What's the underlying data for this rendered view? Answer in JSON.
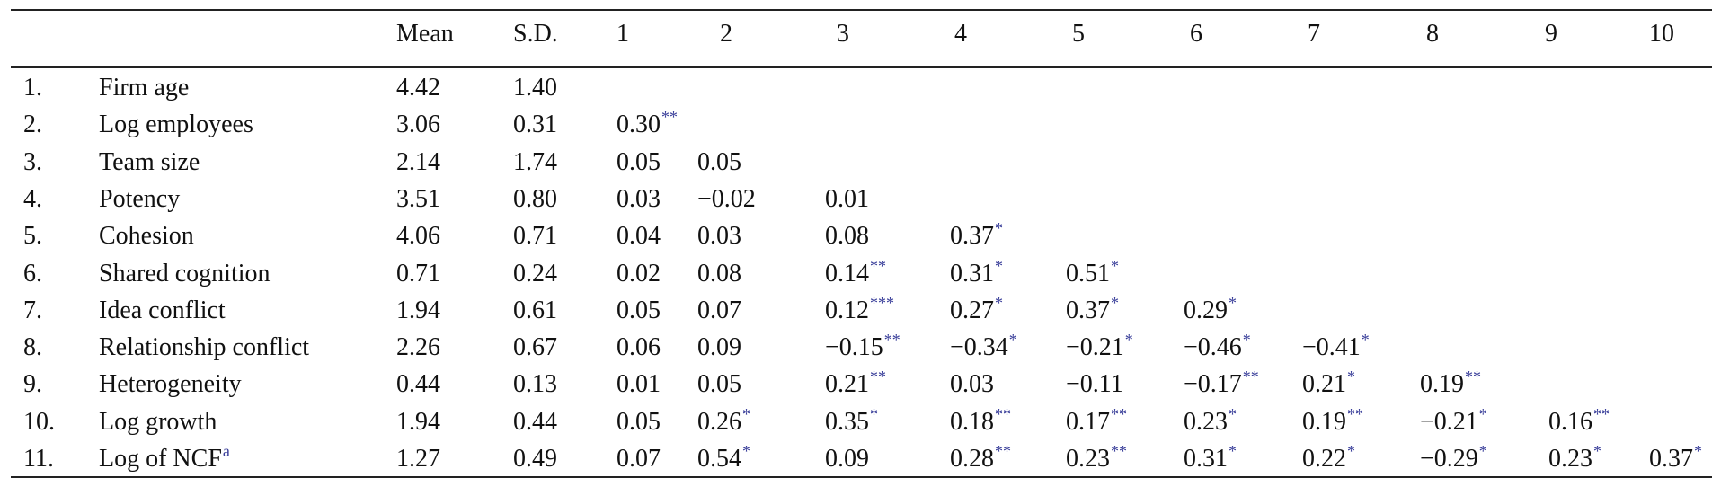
{
  "header": {
    "mean": "Mean",
    "sd": "S.D.",
    "cols": [
      "1",
      "2",
      "3",
      "4",
      "5",
      "6",
      "7",
      "8",
      "9",
      "10"
    ]
  },
  "rows": [
    {
      "num": "1.",
      "name": "Firm age",
      "mean": "4.42",
      "sd": "1.40",
      "cells": []
    },
    {
      "num": "2.",
      "name": "Log employees",
      "mean": "3.06",
      "sd": "0.31",
      "cells": [
        [
          "0.30",
          "**"
        ]
      ]
    },
    {
      "num": "3.",
      "name": "Team size",
      "mean": "2.14",
      "sd": "1.74",
      "cells": [
        [
          "0.05",
          ""
        ],
        [
          "0.05",
          ""
        ]
      ]
    },
    {
      "num": "4.",
      "name": "Potency",
      "mean": "3.51",
      "sd": "0.80",
      "cells": [
        [
          "0.03",
          ""
        ],
        [
          "−0.02",
          ""
        ],
        [
          "0.01",
          ""
        ]
      ]
    },
    {
      "num": "5.",
      "name": "Cohesion",
      "mean": "4.06",
      "sd": "0.71",
      "cells": [
        [
          "0.04",
          ""
        ],
        [
          "0.03",
          ""
        ],
        [
          "0.08",
          ""
        ],
        [
          "0.37",
          "*"
        ]
      ]
    },
    {
      "num": "6.",
      "name": "Shared cognition",
      "mean": "0.71",
      "sd": "0.24",
      "cells": [
        [
          "0.02",
          ""
        ],
        [
          "0.08",
          ""
        ],
        [
          "0.14",
          "**"
        ],
        [
          "0.31",
          "*"
        ],
        [
          "0.51",
          "*"
        ]
      ]
    },
    {
      "num": "7.",
      "name": "Idea conflict",
      "mean": "1.94",
      "sd": "0.61",
      "cells": [
        [
          "0.05",
          ""
        ],
        [
          "0.07",
          ""
        ],
        [
          "0.12",
          "***"
        ],
        [
          "0.27",
          "*"
        ],
        [
          "0.37",
          "*"
        ],
        [
          "0.29",
          "*"
        ]
      ]
    },
    {
      "num": "8.",
      "name": "Relationship conflict",
      "mean": "2.26",
      "sd": "0.67",
      "cells": [
        [
          "0.06",
          ""
        ],
        [
          "0.09",
          ""
        ],
        [
          "−0.15",
          "**"
        ],
        [
          "−0.34",
          "*"
        ],
        [
          "−0.21",
          "*"
        ],
        [
          "−0.46",
          "*"
        ],
        [
          "−0.41",
          "*"
        ]
      ]
    },
    {
      "num": "9.",
      "name": "Heterogeneity",
      "mean": "0.44",
      "sd": "0.13",
      "cells": [
        [
          "0.01",
          ""
        ],
        [
          "0.05",
          ""
        ],
        [
          "0.21",
          "**"
        ],
        [
          "0.03",
          ""
        ],
        [
          "−0.11",
          ""
        ],
        [
          "−0.17",
          "**"
        ],
        [
          "0.21",
          "*"
        ],
        [
          "0.19",
          "**"
        ]
      ]
    },
    {
      "num": "10.",
      "name": "Log growth",
      "mean": "1.94",
      "sd": "0.44",
      "cells": [
        [
          "0.05",
          ""
        ],
        [
          "0.26",
          "*"
        ],
        [
          "0.35",
          "*"
        ],
        [
          "0.18",
          "**"
        ],
        [
          "0.17",
          "**"
        ],
        [
          "0.23",
          "*"
        ],
        [
          "0.19",
          "**"
        ],
        [
          "−0.21",
          "*"
        ],
        [
          "0.16",
          "**"
        ]
      ]
    },
    {
      "num": "11.",
      "name": "Log of NCF",
      "name_sup": "a",
      "mean": "1.27",
      "sd": "0.49",
      "cells": [
        [
          "0.07",
          ""
        ],
        [
          "0.54",
          "*"
        ],
        [
          "0.09",
          ""
        ],
        [
          "0.28",
          "**"
        ],
        [
          "0.23",
          "**"
        ],
        [
          "0.31",
          "*"
        ],
        [
          "0.22",
          "*"
        ],
        [
          "−0.29",
          "*"
        ],
        [
          "0.23",
          "*"
        ],
        [
          "0.37",
          "*"
        ]
      ]
    }
  ]
}
